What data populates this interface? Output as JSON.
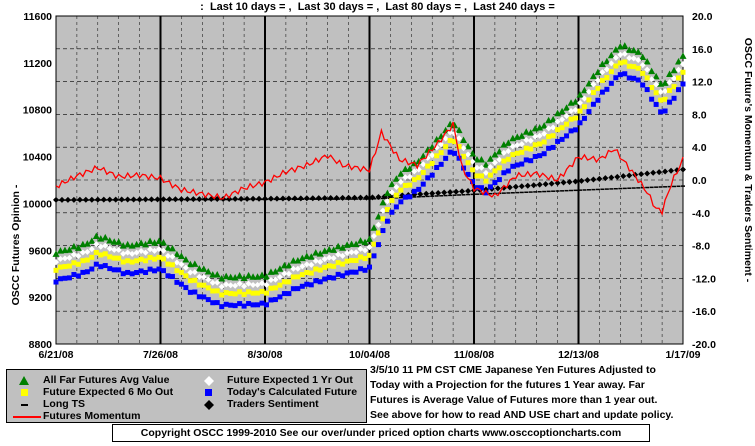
{
  "header": {
    "text": ":  Last 10 days = ,  Last 30 days = ,  Last 80 days = ,  Last 240 days ="
  },
  "colors": {
    "plot_bg": "#c0c0c0",
    "green": "#008000",
    "white_diamond": "#ffffff",
    "yellow": "#ffff00",
    "blue": "#0000ff",
    "black": "#000000",
    "momentum": "#ff0000"
  },
  "chart_data": {
    "type": "scatter",
    "title": "",
    "y_left_label": "OSCC Futures Opinion -",
    "y_right_label": "OSCC Future's Momentum & Traders Sentiment -",
    "y_left_ticks": [
      "11600",
      "11200",
      "10800",
      "10400",
      "10000",
      "9600",
      "9200",
      "8800"
    ],
    "y_right_ticks": [
      "20.0",
      "16.0",
      "12.0",
      "8.0",
      "4.0",
      "0.0",
      "-4.0",
      "-8.0",
      "-12.0",
      "-16.0",
      "-20.0"
    ],
    "x_ticks": [
      "6/21/08",
      "7/26/08",
      "8/30/08",
      "10/04/08",
      "11/08/08",
      "12/13/08",
      "1/17/09"
    ],
    "y_left_range": [
      8800,
      11600
    ],
    "y_right_range": [
      -20,
      20
    ],
    "grid": true,
    "x_start": "6/21/08",
    "x_end": "1/17/09",
    "series": [
      {
        "name": "All Far Futures Avg Value",
        "axis": "left",
        "marker": "triangle",
        "anchors": [
          [
            "6/21/08",
            9580
          ],
          [
            "7/1/08",
            9650
          ],
          [
            "7/5/08",
            9720
          ],
          [
            "7/15/08",
            9640
          ],
          [
            "7/26/08",
            9680
          ],
          [
            "8/5/08",
            9490
          ],
          [
            "8/15/08",
            9370
          ],
          [
            "8/30/08",
            9380
          ],
          [
            "9/10/08",
            9520
          ],
          [
            "9/20/08",
            9600
          ],
          [
            "10/04/08",
            9690
          ],
          [
            "10/10/08",
            10100
          ],
          [
            "10/14/08",
            10250
          ],
          [
            "10/20/08",
            10350
          ],
          [
            "10/27/08",
            10550
          ],
          [
            "11/01/08",
            10700
          ],
          [
            "11/08/08",
            10400
          ],
          [
            "11/12/08",
            10340
          ],
          [
            "11/20/08",
            10540
          ],
          [
            "12/01/08",
            10660
          ],
          [
            "12/13/08",
            10900
          ],
          [
            "12/20/08",
            11150
          ],
          [
            "12/27/08",
            11350
          ],
          [
            "1/03/09",
            11280
          ],
          [
            "1/10/09",
            11000
          ],
          [
            "1/17/09",
            11260
          ]
        ]
      },
      {
        "name": "Future Expected 1 Yr Out",
        "axis": "left",
        "marker": "diamond",
        "offset": -70
      },
      {
        "name": "Future Expected 6 Mo Out",
        "axis": "left",
        "marker": "square-yellow",
        "offset": -140
      },
      {
        "name": "Today's Calculated Future",
        "axis": "left",
        "marker": "square-blue",
        "offset": -240
      },
      {
        "name": "Long TS",
        "axis": "left",
        "marker": "dash",
        "anchors": [
          [
            "6/21/08",
            10030
          ],
          [
            "10/04/08",
            10040
          ],
          [
            "11/08/08",
            10080
          ],
          [
            "1/17/09",
            10150
          ]
        ]
      },
      {
        "name": "Traders Sentiment",
        "axis": "left",
        "marker": "diamond-black",
        "anchors": [
          [
            "6/21/08",
            10030
          ],
          [
            "8/30/08",
            10040
          ],
          [
            "10/04/08",
            10050
          ],
          [
            "11/08/08",
            10110
          ],
          [
            "12/13/08",
            10190
          ],
          [
            "1/17/09",
            10290
          ]
        ]
      },
      {
        "name": "Futures Momentum",
        "axis": "right",
        "marker": "line",
        "anchors": [
          [
            "6/21/08",
            -0.8
          ],
          [
            "6/28/08",
            0.5
          ],
          [
            "7/5/08",
            1.5
          ],
          [
            "7/12/08",
            0.4
          ],
          [
            "7/19/08",
            0.6
          ],
          [
            "7/26/08",
            0.2
          ],
          [
            "8/2/08",
            -1.2
          ],
          [
            "8/9/08",
            -1.7
          ],
          [
            "8/16/08",
            -2.2
          ],
          [
            "8/23/08",
            -1.0
          ],
          [
            "8/30/08",
            -0.3
          ],
          [
            "9/6/08",
            1.0
          ],
          [
            "9/13/08",
            1.8
          ],
          [
            "9/20/08",
            3.0
          ],
          [
            "9/25/08",
            1.8
          ],
          [
            "10/04/08",
            1.2
          ],
          [
            "10/08/08",
            5.8
          ],
          [
            "10/14/08",
            2.5
          ],
          [
            "10/20/08",
            1.8
          ],
          [
            "10/27/08",
            4.5
          ],
          [
            "11/01/08",
            6.8
          ],
          [
            "11/04/08",
            1.5
          ],
          [
            "11/08/08",
            -1.0
          ],
          [
            "11/15/08",
            -2.0
          ],
          [
            "11/22/08",
            0.5
          ],
          [
            "11/29/08",
            0.8
          ],
          [
            "12/06/08",
            0.0
          ],
          [
            "12/13/08",
            2.8
          ],
          [
            "12/20/08",
            2.5
          ],
          [
            "12/25/08",
            3.8
          ],
          [
            "1/01/09",
            0.5
          ],
          [
            "1/05/09",
            -1.5
          ],
          [
            "1/08/09",
            -3.5
          ],
          [
            "1/10/09",
            -3.8
          ],
          [
            "1/13/09",
            -0.5
          ],
          [
            "1/17/09",
            2.5
          ]
        ]
      }
    ]
  },
  "legend": {
    "items": [
      {
        "label": "All Far Futures Avg Value"
      },
      {
        "label": "Future Expected 1 Yr Out"
      },
      {
        "label": "Future Expected 6 Mo Out"
      },
      {
        "label": "Today's Calculated Future"
      },
      {
        "label": "Long TS"
      },
      {
        "label": "Traders Sentiment"
      },
      {
        "label": "Futures Momentum"
      }
    ]
  },
  "description": {
    "line1": "3/5/10 11 PM CST CME Japanese Yen  Futures Adjusted to",
    "line2": "Today with a Projection for the futures 1 Year away. Far",
    "line3": "Futures is Average Value of Futures more than 1 year out.",
    "line4": "See above for how to read AND USE chart and update policy."
  },
  "copyright": "Copyright OSCC 1999-2010 See our over/under priced option charts www.osccoptioncharts.com"
}
